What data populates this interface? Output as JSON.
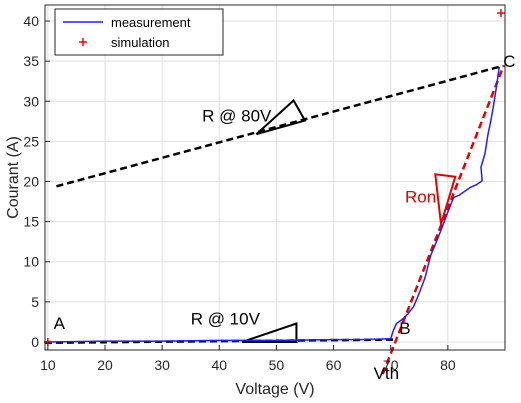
{
  "chart_data": {
    "type": "line",
    "xlabel": "Voltage (V)",
    "ylabel": "Courant (A)",
    "xlim": [
      9.5,
      90
    ],
    "ylim": [
      -1,
      42
    ],
    "xticks": [
      10,
      20,
      30,
      40,
      50,
      60,
      70,
      80
    ],
    "yticks": [
      0,
      5,
      10,
      15,
      20,
      25,
      30,
      35,
      40
    ],
    "grid": true,
    "legend_placement": "top-left",
    "series": [
      {
        "name": "measurement",
        "color": "#1f1fff",
        "style": "solid",
        "x": [
          10,
          20,
          30,
          40,
          50,
          60,
          65,
          70,
          70.5,
          71,
          72,
          73,
          74,
          75,
          76,
          77,
          78,
          79,
          80,
          81,
          82,
          83,
          84,
          85,
          86,
          85.8,
          86.5,
          87,
          87.5,
          88,
          88.5,
          89
        ],
        "y": [
          0,
          0.1,
          0.1,
          0.2,
          0.2,
          0.3,
          0.3,
          0.4,
          1.5,
          2.3,
          2.8,
          3.5,
          4.4,
          6.1,
          8.0,
          10.8,
          12.5,
          14.3,
          16.2,
          18.0,
          18.3,
          18.8,
          19.3,
          19.6,
          20.1,
          21.8,
          23.5,
          25.8,
          27.5,
          29.5,
          31.8,
          34.3
        ]
      },
      {
        "name": "simulation",
        "color": "#ff0000",
        "marker": "+",
        "x": [
          10,
          89.3
        ],
        "y": [
          0,
          41
        ]
      }
    ],
    "reference_lines": [
      {
        "color": "#000000",
        "style": "dashed",
        "x": [
          9.5,
          71
        ],
        "y": [
          -0.1,
          0.3
        ]
      },
      {
        "color": "#000000",
        "style": "dashed",
        "x": [
          11.5,
          89
        ],
        "y": [
          19.4,
          34.3
        ]
      },
      {
        "color": "#e60000",
        "style": "dashed",
        "x": [
          68.6,
          89.8
        ],
        "y": [
          -4,
          34.5
        ]
      }
    ],
    "slope_triangles": [
      {
        "color": "#000000",
        "x": [
          44,
          53.5,
          53.5
        ],
        "y": [
          0,
          0,
          2.3
        ]
      },
      {
        "color": "#000000",
        "x": [
          46.5,
          55,
          53
        ],
        "y": [
          25.9,
          27.6,
          30.1
        ]
      },
      {
        "color": "#e60000",
        "x": [
          78.8,
          77.8,
          81.3
        ],
        "y": [
          14.7,
          20.9,
          20.6
        ]
      }
    ],
    "annotations": [
      {
        "text": "A",
        "x": 11,
        "y": 1.6,
        "color": "#000000"
      },
      {
        "text": "B",
        "x": 71.5,
        "y": 1.0,
        "color": "#000000"
      },
      {
        "text": "C",
        "x": 89.7,
        "y": 34.3,
        "color": "#000000"
      },
      {
        "text": "R @ 10V",
        "x": 35,
        "y": 2.2,
        "color": "#000000"
      },
      {
        "text": "R @ 80V",
        "x": 37,
        "y": 27.5,
        "color": "#000000"
      },
      {
        "text": "Ron",
        "x": 72.5,
        "y": 17.4,
        "color": "#e60000"
      },
      {
        "text": "Vth",
        "x": 67,
        "y": -4.6,
        "color": "#000000"
      }
    ]
  }
}
